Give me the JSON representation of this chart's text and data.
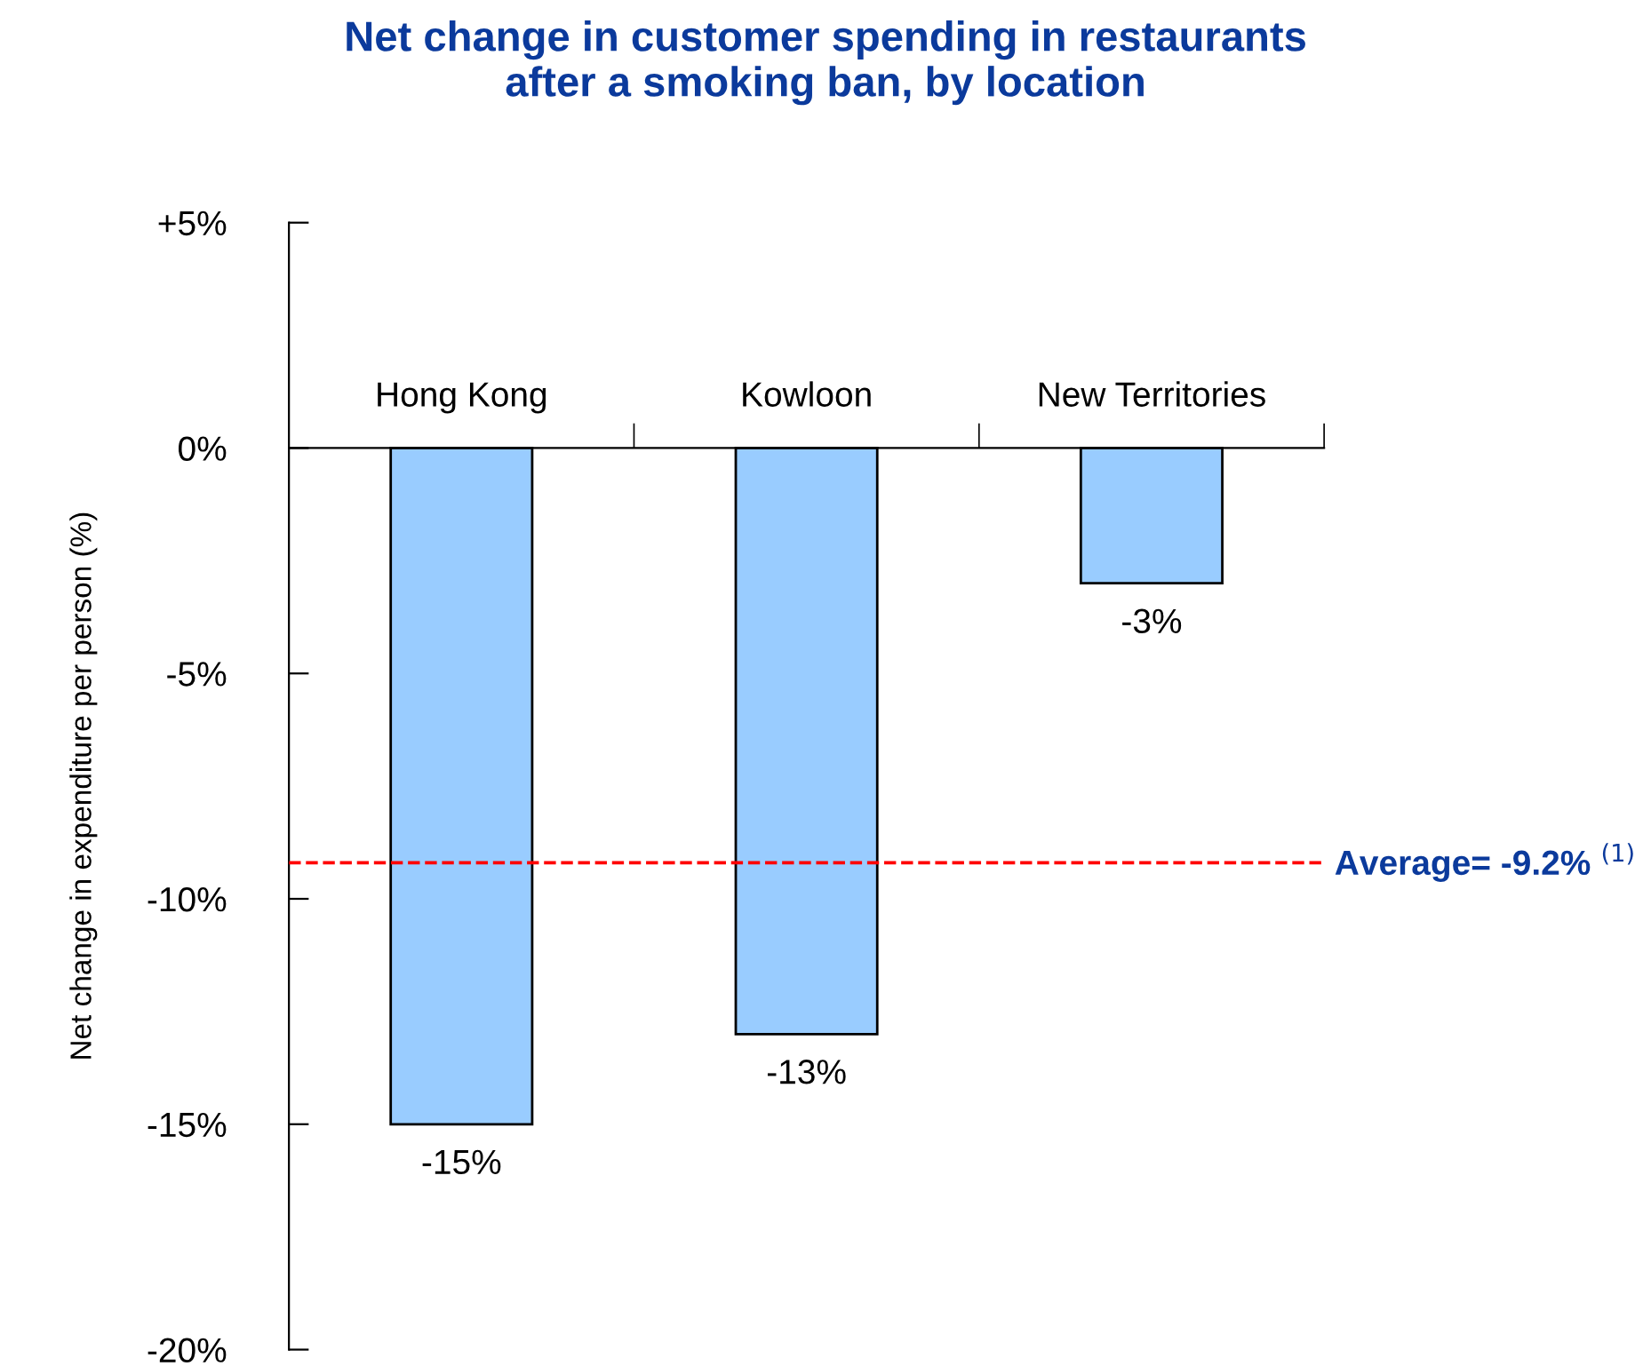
{
  "chart_data": {
    "type": "bar",
    "title": "Net change in customer spending in restaurants\nafter a smoking ban, by location",
    "ylabel": "Net change in expenditure per person (%)",
    "categories": [
      "Hong Kong",
      "Kowloon",
      "New Territories"
    ],
    "values": [
      -15,
      -13,
      -3
    ],
    "color": "#99ccff",
    "data_labels": true,
    "value_labels": [
      "-15%",
      "-13%",
      "-3%"
    ],
    "ylim": [
      -20,
      5
    ],
    "yticks": [
      {
        "value": 5,
        "label": "+5%"
      },
      {
        "value": 0,
        "label": "0%"
      },
      {
        "value": -5,
        "label": "-5%"
      },
      {
        "value": -10,
        "label": "-10%"
      },
      {
        "value": -15,
        "label": "-15%"
      },
      {
        "value": -20,
        "label": "-20%"
      }
    ],
    "ref_lines": [
      {
        "axis": "y",
        "value": -9.2,
        "label": "Average= -9.2% $^{(1)}$",
        "color": "#ff0000",
        "line_style": "dashed"
      }
    ],
    "grid": false,
    "legend": false
  }
}
